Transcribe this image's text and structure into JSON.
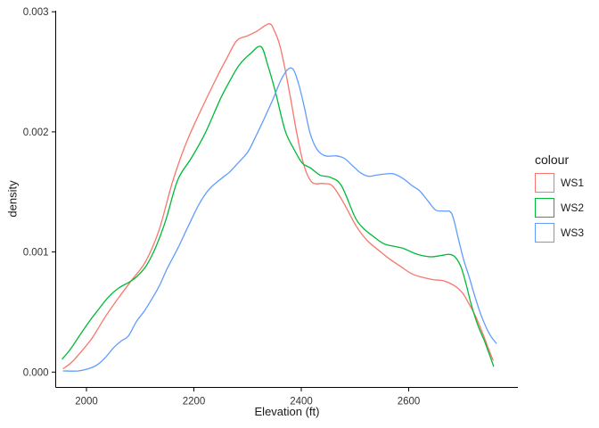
{
  "chart_data": {
    "type": "line",
    "title": "",
    "xlabel": "Elevation (ft)",
    "ylabel": "density",
    "xlim": [
      1943,
      2803
    ],
    "ylim": [
      0,
      0.003
    ],
    "grid": false,
    "background": "#ffffff",
    "axis_color": "#000000",
    "tick_text_color": "#333333",
    "legend_position": "right",
    "legend_title": "colour",
    "x_ticks": [
      2000,
      2200,
      2400,
      2600
    ],
    "x_tick_labels": [
      "2000",
      "2200",
      "2400",
      "2600"
    ],
    "y_ticks": [
      0,
      0.001,
      0.002,
      0.003
    ],
    "y_tick_labels": [
      "0.000",
      "0.001",
      "0.002",
      "0.003"
    ],
    "series": [
      {
        "name": "WS1",
        "color": "#F8766D",
        "points": [
          [
            1957,
            3e-05
          ],
          [
            1972,
            8e-05
          ],
          [
            1990,
            0.00017
          ],
          [
            2010,
            0.00028
          ],
          [
            2035,
            0.00046
          ],
          [
            2060,
            0.00062
          ],
          [
            2085,
            0.00077
          ],
          [
            2110,
            0.00092
          ],
          [
            2135,
            0.00118
          ],
          [
            2160,
            0.00158
          ],
          [
            2185,
            0.0019
          ],
          [
            2212,
            0.00217
          ],
          [
            2240,
            0.00243
          ],
          [
            2262,
            0.00262
          ],
          [
            2280,
            0.00276
          ],
          [
            2300,
            0.0028
          ],
          [
            2318,
            0.00284
          ],
          [
            2340,
            0.0029
          ],
          [
            2350,
            0.00284
          ],
          [
            2360,
            0.00272
          ],
          [
            2370,
            0.00252
          ],
          [
            2380,
            0.00228
          ],
          [
            2392,
            0.00198
          ],
          [
            2405,
            0.00172
          ],
          [
            2420,
            0.00158
          ],
          [
            2440,
            0.00157
          ],
          [
            2458,
            0.00155
          ],
          [
            2480,
            0.0014
          ],
          [
            2503,
            0.00121
          ],
          [
            2524,
            0.00109
          ],
          [
            2548,
            0.001
          ],
          [
            2565,
            0.00094
          ],
          [
            2585,
            0.00088
          ],
          [
            2605,
            0.00082
          ],
          [
            2625,
            0.00079
          ],
          [
            2645,
            0.00077
          ],
          [
            2665,
            0.00076
          ],
          [
            2685,
            0.00072
          ],
          [
            2700,
            0.00066
          ],
          [
            2712,
            0.00057
          ],
          [
            2725,
            0.00046
          ],
          [
            2738,
            0.00032
          ],
          [
            2748,
            0.0002
          ],
          [
            2757,
            0.0001
          ]
        ]
      },
      {
        "name": "WS2",
        "color": "#00BA38",
        "points": [
          [
            1955,
            0.00011
          ],
          [
            1970,
            0.00019
          ],
          [
            1988,
            0.00031
          ],
          [
            2005,
            0.00042
          ],
          [
            2022,
            0.00052
          ],
          [
            2040,
            0.00062
          ],
          [
            2060,
            0.0007
          ],
          [
            2080,
            0.00075
          ],
          [
            2095,
            0.0008
          ],
          [
            2112,
            0.00089
          ],
          [
            2130,
            0.00105
          ],
          [
            2148,
            0.00127
          ],
          [
            2170,
            0.0016
          ],
          [
            2195,
            0.00178
          ],
          [
            2220,
            0.00198
          ],
          [
            2250,
            0.00228
          ],
          [
            2270,
            0.00245
          ],
          [
            2285,
            0.00256
          ],
          [
            2305,
            0.00265
          ],
          [
            2325,
            0.00271
          ],
          [
            2338,
            0.00255
          ],
          [
            2352,
            0.00233
          ],
          [
            2370,
            0.00201
          ],
          [
            2387,
            0.00185
          ],
          [
            2402,
            0.00174
          ],
          [
            2417,
            0.0017
          ],
          [
            2435,
            0.00164
          ],
          [
            2455,
            0.00162
          ],
          [
            2475,
            0.00155
          ],
          [
            2500,
            0.00129
          ],
          [
            2515,
            0.0012
          ],
          [
            2531,
            0.00114
          ],
          [
            2553,
            0.00107
          ],
          [
            2570,
            0.00105
          ],
          [
            2590,
            0.00103
          ],
          [
            2610,
            0.00099
          ],
          [
            2625,
            0.00097
          ],
          [
            2642,
            0.00096
          ],
          [
            2660,
            0.00097
          ],
          [
            2675,
            0.00098
          ],
          [
            2686,
            0.00096
          ],
          [
            2697,
            0.00088
          ],
          [
            2707,
            0.00073
          ],
          [
            2716,
            0.00057
          ],
          [
            2728,
            0.0004
          ],
          [
            2740,
            0.00027
          ],
          [
            2750,
            0.00015
          ],
          [
            2758,
            5e-05
          ]
        ]
      },
      {
        "name": "WS3",
        "color": "#619CFF",
        "points": [
          [
            1957,
            1e-05
          ],
          [
            1985,
            1e-05
          ],
          [
            2005,
            3e-05
          ],
          [
            2020,
            6e-05
          ],
          [
            2035,
            0.00012
          ],
          [
            2050,
            0.0002
          ],
          [
            2065,
            0.00026
          ],
          [
            2078,
            0.0003
          ],
          [
            2093,
            0.00042
          ],
          [
            2108,
            0.00051
          ],
          [
            2122,
            0.00061
          ],
          [
            2136,
            0.00072
          ],
          [
            2150,
            0.00086
          ],
          [
            2170,
            0.00103
          ],
          [
            2190,
            0.00122
          ],
          [
            2210,
            0.0014
          ],
          [
            2228,
            0.00152
          ],
          [
            2248,
            0.0016
          ],
          [
            2265,
            0.00166
          ],
          [
            2282,
            0.00174
          ],
          [
            2300,
            0.00183
          ],
          [
            2315,
            0.00196
          ],
          [
            2330,
            0.0021
          ],
          [
            2348,
            0.00228
          ],
          [
            2362,
            0.00243
          ],
          [
            2375,
            0.00252
          ],
          [
            2385,
            0.00252
          ],
          [
            2395,
            0.0024
          ],
          [
            2405,
            0.00222
          ],
          [
            2417,
            0.00198
          ],
          [
            2430,
            0.00185
          ],
          [
            2445,
            0.0018
          ],
          [
            2465,
            0.0018
          ],
          [
            2480,
            0.00178
          ],
          [
            2495,
            0.00172
          ],
          [
            2510,
            0.00166
          ],
          [
            2525,
            0.00163
          ],
          [
            2540,
            0.00164
          ],
          [
            2558,
            0.00165
          ],
          [
            2572,
            0.00165
          ],
          [
            2590,
            0.00161
          ],
          [
            2607,
            0.00155
          ],
          [
            2620,
            0.00151
          ],
          [
            2635,
            0.00143
          ],
          [
            2650,
            0.00135
          ],
          [
            2665,
            0.00134
          ],
          [
            2680,
            0.00132
          ],
          [
            2692,
            0.00112
          ],
          [
            2702,
            0.00094
          ],
          [
            2712,
            0.0008
          ],
          [
            2724,
            0.00062
          ],
          [
            2736,
            0.00046
          ],
          [
            2750,
            0.00032
          ],
          [
            2763,
            0.00024
          ]
        ]
      }
    ]
  }
}
